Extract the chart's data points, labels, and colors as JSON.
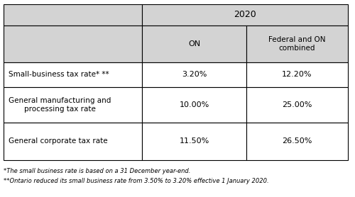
{
  "title_year": "2020",
  "col_header_1": "ON",
  "col_header_2": "Federal and ON\ncombined",
  "rows": [
    {
      "label": "Small-business tax rate* **",
      "on": "3.20%",
      "combined": "12.20%"
    },
    {
      "label": "General manufacturing and\nprocessing tax rate",
      "on": "10.00%",
      "combined": "25.00%"
    },
    {
      "label": "General corporate tax rate",
      "on": "11.50%",
      "combined": "26.50%"
    }
  ],
  "footnote1": "*The small business rate is based on a 31 December year-end.",
  "footnote2": "**Ontario reduced its small business rate from 3.50% to 3.20% effective 1 January 2020.",
  "header_bg": "#d3d3d3",
  "row_bg": "#ffffff",
  "border_color": "#000000"
}
